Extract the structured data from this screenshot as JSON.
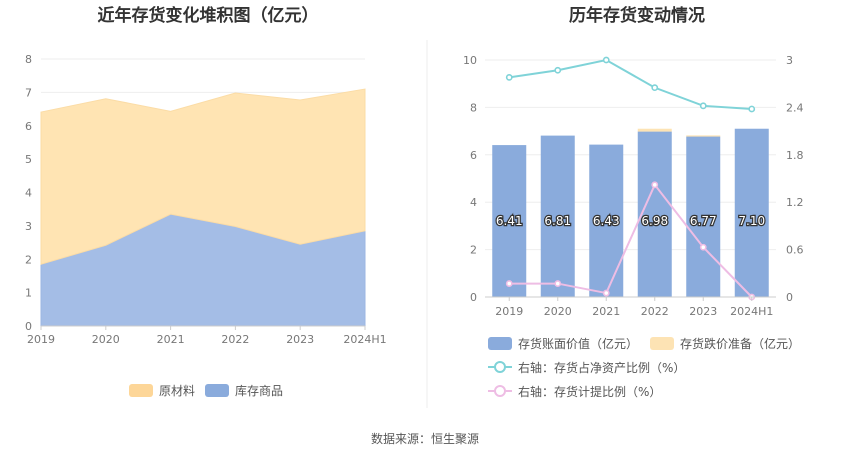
{
  "source": "数据来源：恒生聚源",
  "chart_data": [
    {
      "type": "area",
      "stacked": true,
      "title": "近年存货变化堆积图（亿元）",
      "categories": [
        "2019",
        "2020",
        "2021",
        "2022",
        "2023",
        "2024H1"
      ],
      "yticks": [
        "0",
        "1",
        "2",
        "3",
        "4",
        "5",
        "6",
        "7",
        "8"
      ],
      "ylim": [
        0,
        8
      ],
      "grid": true,
      "legend_position": "bottom",
      "series": [
        {
          "name": "库存商品",
          "color": "#a4bde6",
          "legend_color": "#8aabdc",
          "values": [
            1.85,
            2.42,
            3.35,
            2.98,
            2.45,
            2.85
          ]
        },
        {
          "name": "原材料",
          "color": "#ffe4b3",
          "legend_color": "#fdd698",
          "values": [
            4.56,
            4.39,
            3.08,
            4.0,
            4.32,
            4.25
          ]
        }
      ]
    },
    {
      "type": "bar",
      "title": "历年存货变动情况",
      "categories": [
        "2019",
        "2020",
        "2021",
        "2022",
        "2023",
        "2024H1"
      ],
      "left_yticks": [
        "0",
        "2",
        "4",
        "6",
        "8",
        "10"
      ],
      "left_ylim": [
        0,
        10
      ],
      "right_yticks": [
        "0",
        "0.6",
        "1.2",
        "1.8",
        "2.4",
        "3"
      ],
      "right_ylim": [
        0,
        3
      ],
      "grid": true,
      "legend_position": "bottom",
      "series": [
        {
          "name": "存货账面价值（亿元）",
          "type": "bar",
          "axis": "left",
          "color": "#8aabdc",
          "values": [
            6.41,
            6.81,
            6.43,
            6.98,
            6.77,
            7.1
          ],
          "labels": [
            "6.41",
            "6.81",
            "6.43",
            "6.98",
            "6.77",
            "7.10"
          ]
        },
        {
          "name": "存货跌价准备（亿元）",
          "type": "bar",
          "axis": "left",
          "stacked": true,
          "color": "#fde3b4",
          "values": [
            0,
            0,
            0,
            0.12,
            0.05,
            0
          ]
        },
        {
          "name": "右轴：存货占净资产比例（%）",
          "type": "line",
          "axis": "right",
          "color": "#7fd3d8",
          "values": [
            2.78,
            2.87,
            3.0,
            2.65,
            2.42,
            2.38
          ]
        },
        {
          "name": "右轴：存货计提比例（%）",
          "type": "line",
          "axis": "right",
          "color": "#eebde4",
          "values": [
            0.17,
            0.17,
            0.05,
            1.42,
            0.63,
            0.0
          ]
        }
      ]
    }
  ]
}
